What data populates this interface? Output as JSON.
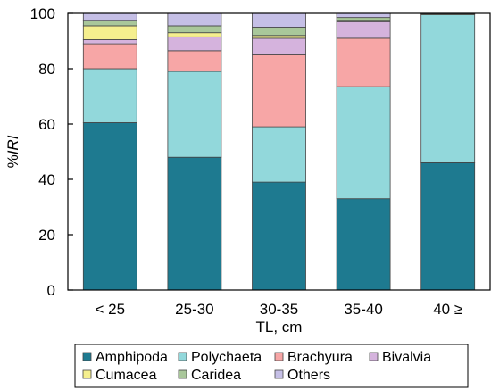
{
  "chart_data": {
    "type": "bar",
    "stacked": true,
    "xlabel": "TL, cm",
    "ylabel_prefix": "%",
    "ylabel_italic": "IRI",
    "ylim": [
      0,
      100
    ],
    "yticks": [
      "0",
      "20",
      "40",
      "60",
      "80",
      "100"
    ],
    "categories": [
      "< 25",
      "25-30",
      "30-35",
      "35-40",
      "40 ≥"
    ],
    "grid": false,
    "legend_position": "bottom",
    "series": [
      {
        "name": "Amphipoda",
        "color": "#1e7a90",
        "values": [
          60.5,
          48,
          39,
          33,
          46
        ]
      },
      {
        "name": "Polychaeta",
        "color": "#92d8db",
        "values": [
          19.5,
          31,
          20,
          40.5,
          53.5
        ]
      },
      {
        "name": "Brachyura",
        "color": "#f7a6a6",
        "values": [
          9,
          7.5,
          26,
          17.5,
          0
        ]
      },
      {
        "name": "Bivalvia",
        "color": "#d5b3dd",
        "values": [
          1.5,
          5,
          6,
          6,
          0
        ]
      },
      {
        "name": "Cumacea",
        "color": "#f5ef8e",
        "values": [
          5,
          1.5,
          1,
          0.5,
          0
        ]
      },
      {
        "name": "Caridea",
        "color": "#a9c79a",
        "values": [
          2,
          2.5,
          3,
          1,
          0.3
        ]
      },
      {
        "name": "Others",
        "color": "#c5bfe6",
        "values": [
          2.5,
          4.5,
          5,
          1.5,
          0.2
        ]
      }
    ],
    "legend_rows": [
      [
        "Amphipoda",
        "Polychaeta",
        "Brachyura",
        "Bivalvia"
      ],
      [
        "Cumacea",
        "Caridea",
        "Others"
      ]
    ]
  }
}
